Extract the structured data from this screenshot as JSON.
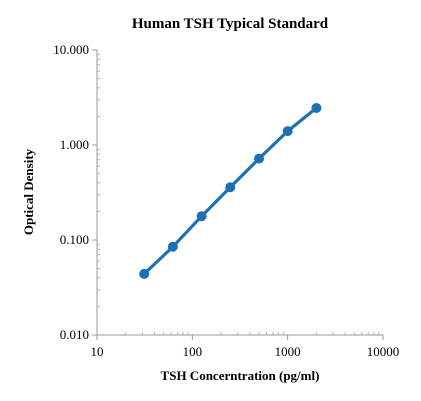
{
  "chart_data": {
    "type": "line",
    "title": "Human TSH Typical Standard",
    "xlabel": "TSH Concerntration (pg/ml)",
    "ylabel": "Optical Density",
    "x_scale": "log",
    "y_scale": "log",
    "xlim": [
      10,
      10000
    ],
    "ylim": [
      0.01,
      10
    ],
    "x_ticks": [
      10,
      100,
      1000,
      10000
    ],
    "x_tick_labels": [
      "10",
      "100",
      "1000",
      "10000"
    ],
    "y_ticks": [
      0.01,
      0.1,
      1,
      10
    ],
    "y_tick_labels": [
      "0.010",
      "0.100",
      "1.000",
      "10.000"
    ],
    "grid": false,
    "legend": "none",
    "series_color": "#1f6fb5",
    "series": [
      {
        "x": [
          31.25,
          62.5,
          125,
          250,
          500,
          1000,
          2000
        ],
        "values": [
          0.044,
          0.085,
          0.178,
          0.36,
          0.72,
          1.4,
          2.45
        ]
      }
    ]
  }
}
